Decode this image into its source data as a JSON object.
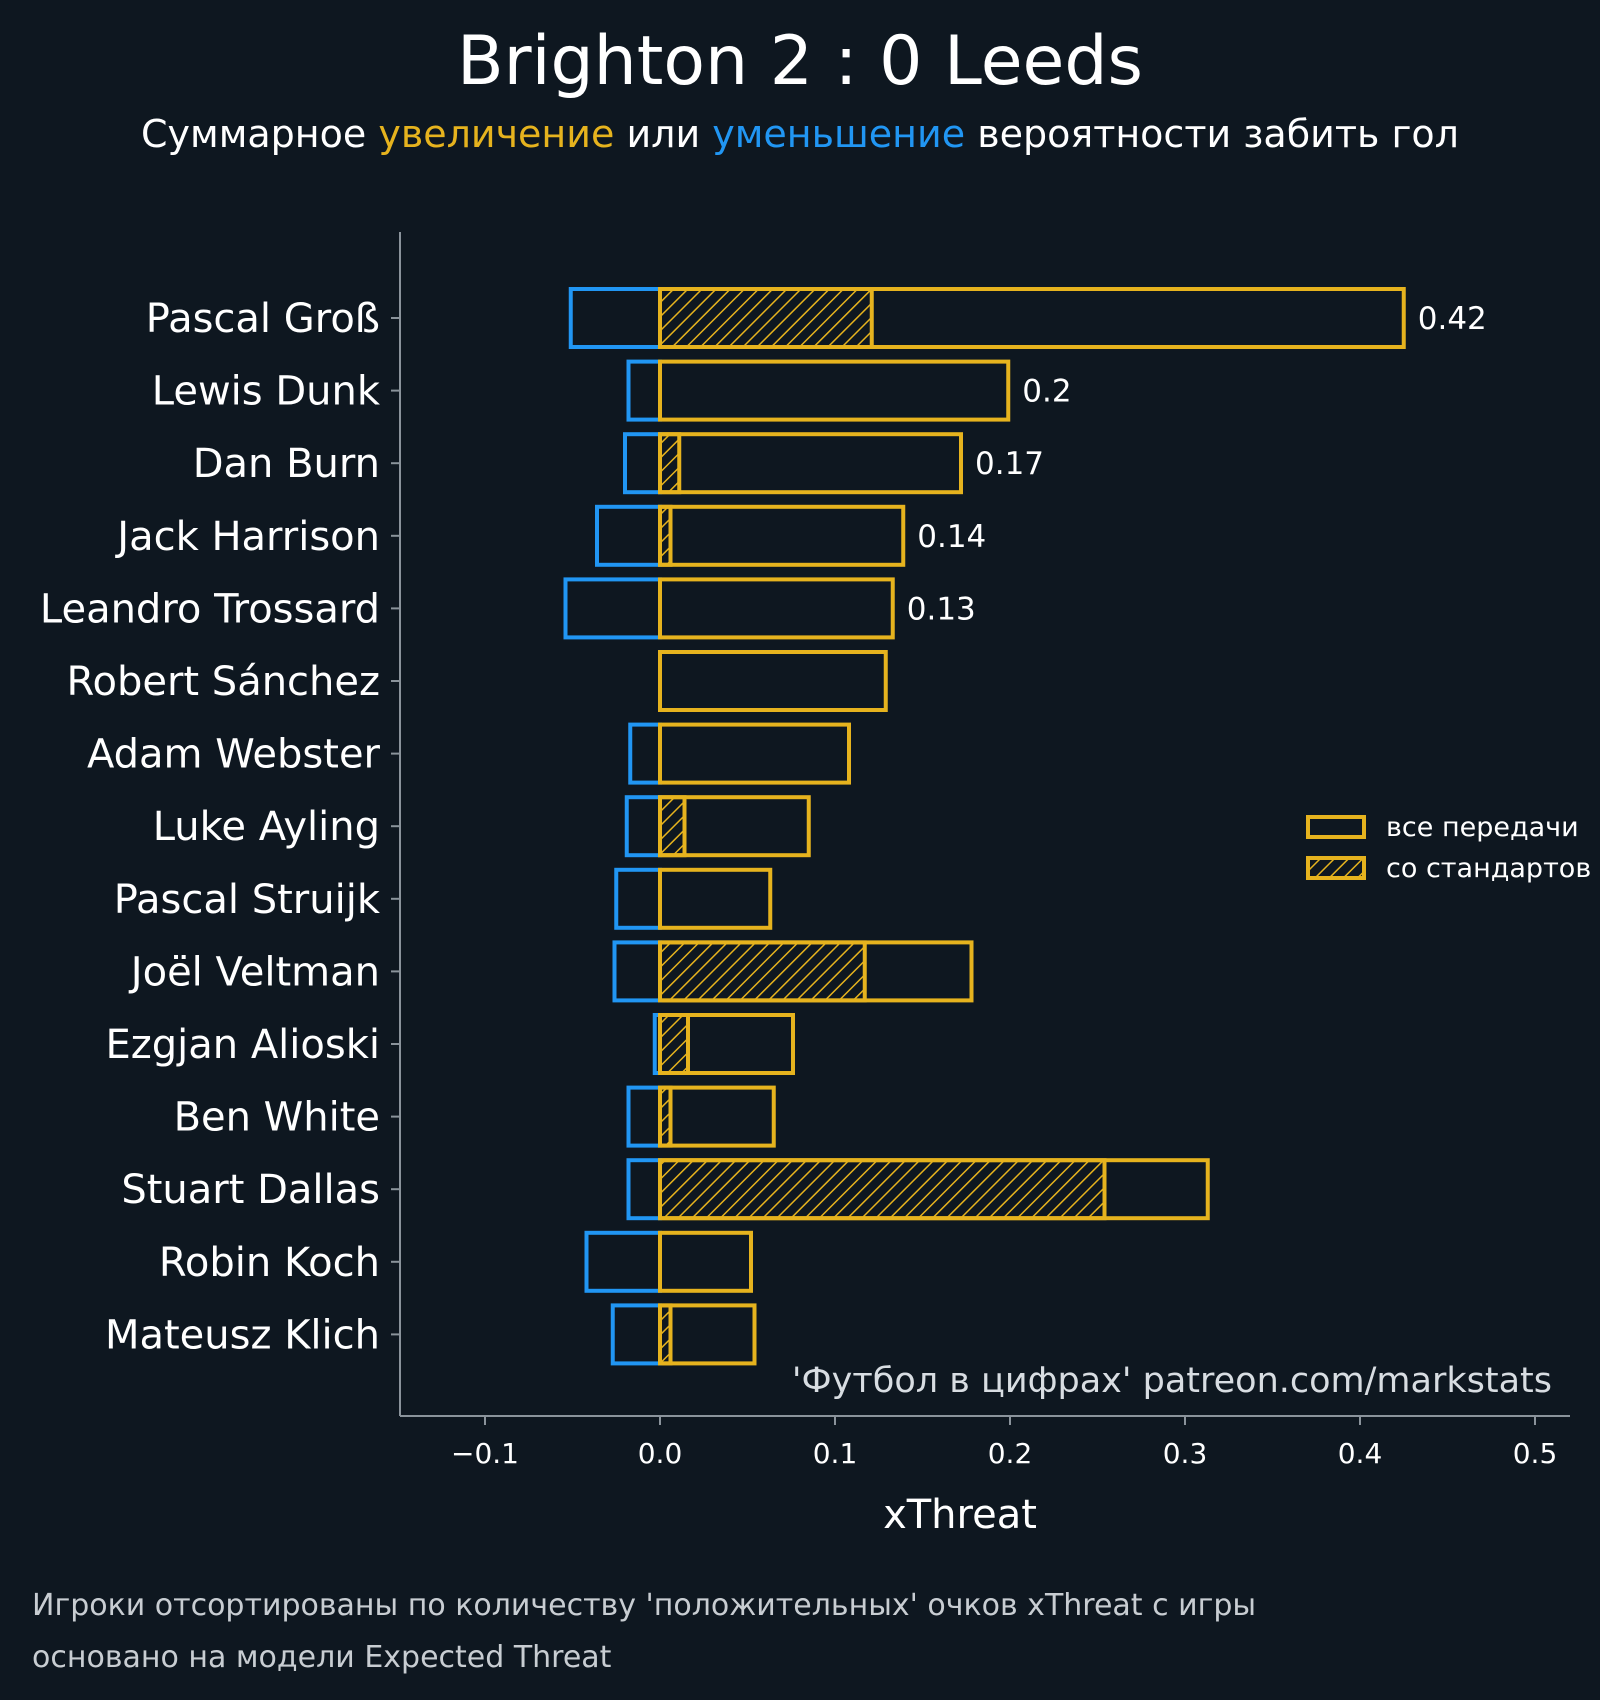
{
  "title": "Brighton 2 : 0 Leeds",
  "subtitle": {
    "prefix": "Суммарное",
    "increase": "увеличение",
    "middle": "или",
    "decrease": "уменьшение",
    "suffix": "вероятности забить гол"
  },
  "footnote": {
    "line1": "Игроки отсортированы по количеству 'положительных' очков xThreat с игры",
    "line2": "основано на модели Expected Threat"
  },
  "colors": {
    "background": "#0e1720",
    "positive": "#e6b31e",
    "negative": "#2196f3",
    "axis": "#8a939b",
    "text": "#ffffff"
  },
  "chart_data": {
    "type": "bar",
    "orientation": "horizontal",
    "xlabel": "xThreat",
    "xlim": [
      -0.15,
      0.52
    ],
    "xticks": [
      -0.1,
      0.0,
      0.1,
      0.2,
      0.3,
      0.4,
      0.5
    ],
    "xtick_labels": [
      "−0.1",
      "0.0",
      "0.1",
      "0.2",
      "0.3",
      "0.4",
      "0.5"
    ],
    "watermark": "'Футбол в цифрах' patreon.com/markstats",
    "legend": {
      "position": "right",
      "entries": [
        "все передачи",
        "со стандартов"
      ]
    },
    "categories": [
      "Pascal Groß",
      "Lewis Dunk",
      "Dan Burn",
      "Jack Harrison",
      "Leandro Trossard",
      "Robert Sánchez",
      "Adam Webster",
      "Luke Ayling",
      "Pascal Struijk",
      "Joël Veltman",
      "Ezgjan Alioski",
      "Ben White",
      "Stuart Dallas",
      "Robin Koch",
      "Mateusz Klich"
    ],
    "series": [
      {
        "name": "negative",
        "values": [
          -0.051,
          -0.018,
          -0.02,
          -0.036,
          -0.054,
          0.0,
          -0.017,
          -0.019,
          -0.025,
          -0.026,
          -0.003,
          -0.018,
          -0.018,
          -0.042,
          -0.027
        ]
      },
      {
        "name": "все передачи",
        "values": [
          0.425,
          0.199,
          0.172,
          0.139,
          0.133,
          0.129,
          0.108,
          0.085,
          0.063,
          0.178,
          0.076,
          0.065,
          0.313,
          0.052,
          0.054
        ]
      },
      {
        "name": "со стандартов",
        "values": [
          0.121,
          0.0,
          0.011,
          0.006,
          0.0,
          0.0,
          0.0,
          0.014,
          0.0,
          0.117,
          0.016,
          0.006,
          0.254,
          0.0,
          0.006
        ]
      }
    ],
    "value_labels": [
      "0.42",
      "0.2",
      "0.17",
      "0.14",
      "0.13",
      "",
      "",
      "",
      "",
      "",
      "",
      "",
      "",
      "",
      ""
    ]
  }
}
